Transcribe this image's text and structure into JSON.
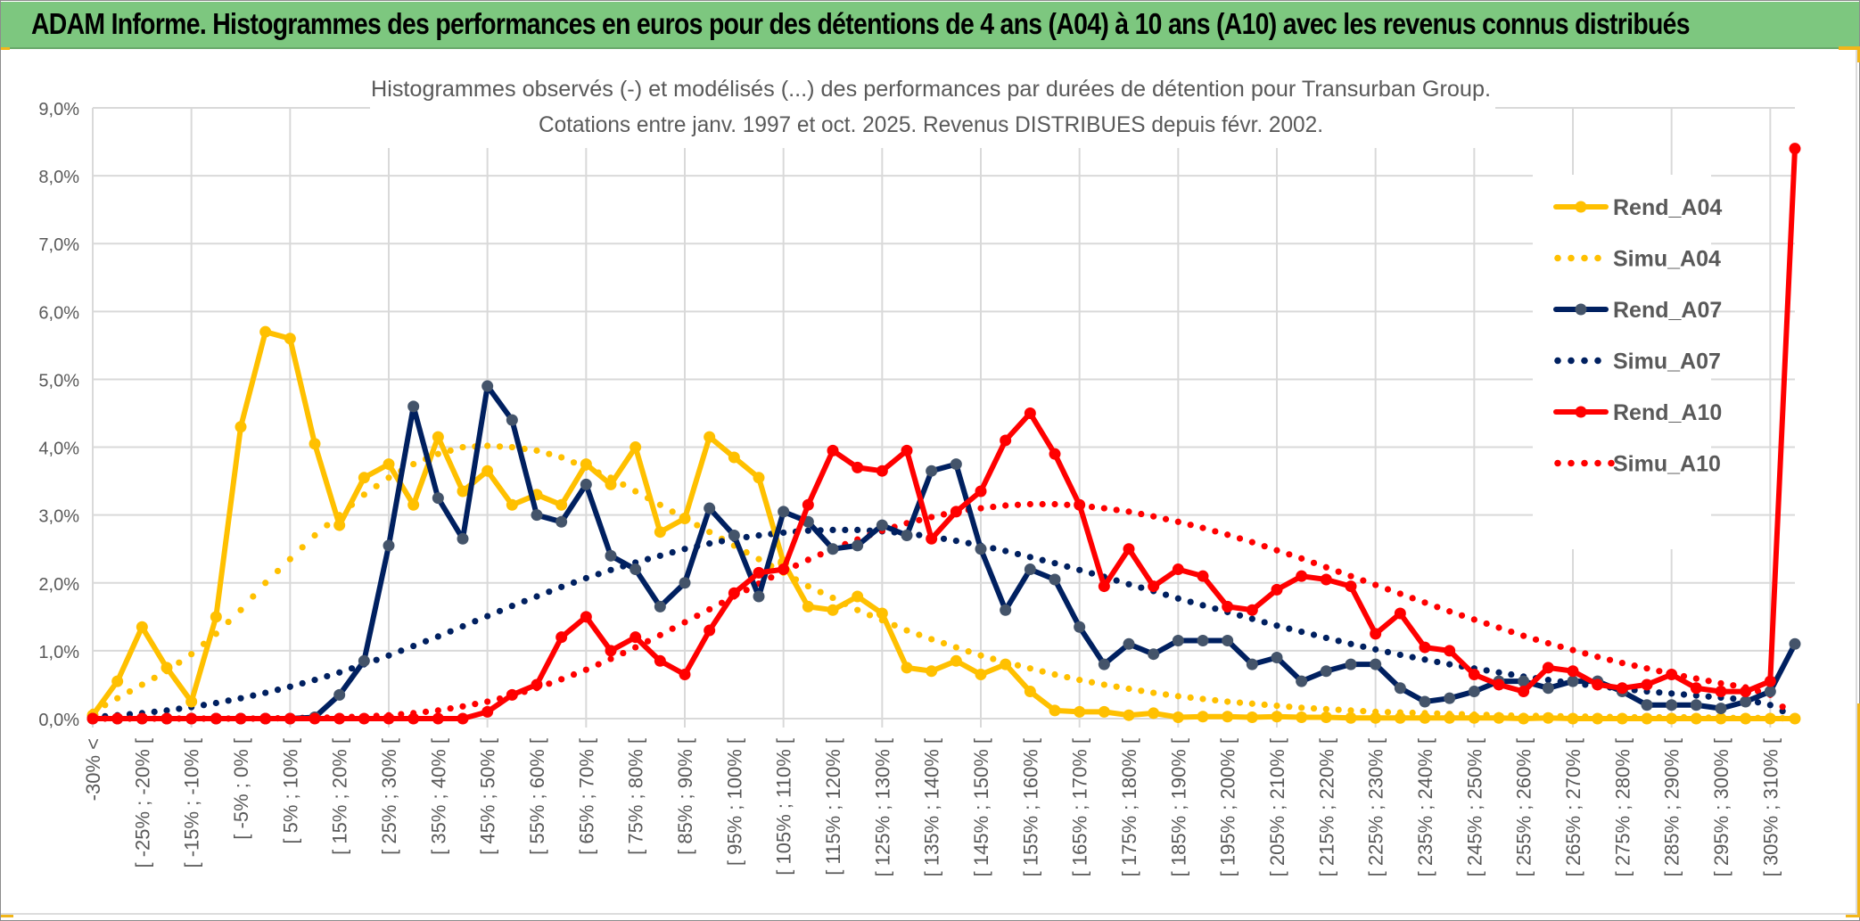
{
  "header": {
    "title": "ADAM Informe. Histogrammes des performances en euros pour des détentions de 4 ans (A04) à 10 ans (A10) avec les revenus connus distribués"
  },
  "chart_data": {
    "type": "line",
    "title": "Histogrammes observés (-) et modélisés (...) des performances par durées de détention pour Transurban Group.",
    "subtitle": "Cotations entre janv. 1997 et oct. 2025. Revenus DISTRIBUES depuis févr. 2002.",
    "xlabel": "",
    "ylabel": "",
    "ylim": [
      0,
      9
    ],
    "y_unit": "%",
    "y_ticks": [
      "0,0%",
      "1,0%",
      "2,0%",
      "3,0%",
      "4,0%",
      "5,0%",
      "6,0%",
      "7,0%",
      "8,0%",
      "9,0%"
    ],
    "grid": true,
    "legend_position": "right",
    "categories": [
      "-30% <",
      "[ -30% ; -25% [",
      "[ -25% ; -20% [",
      "[ -20% ; -15% [",
      "[ -15% ; -10% [",
      "[ -10% ; -5% [",
      "[ -5% ; 0% [",
      "[ 0% ; 5% [",
      "[ 5% ; 10% [",
      "[ 10% ; 15% [",
      "[ 15% ; 20% [",
      "[ 20% ; 25% [",
      "[ 25% ; 30% [",
      "[ 30% ; 35% [",
      "[ 35% ; 40% [",
      "[ 40% ; 45% [",
      "[ 45% ; 50% [",
      "[ 50% ; 55% [",
      "[ 55% ; 60% [",
      "[ 60% ; 65% [",
      "[ 65% ; 70% [",
      "[ 70% ; 75% [",
      "[ 75% ; 80% [",
      "[ 80% ; 85% [",
      "[ 85% ; 90% [",
      "[ 90% ; 95% [",
      "[ 95% ; 100% [",
      "[ 100% ; 105% [",
      "[ 105% ; 110% [",
      "[ 110% ; 115% [",
      "[ 115% ; 120% [",
      "[ 120% ; 125% [",
      "[ 125% ; 130% [",
      "[ 130% ; 135% [",
      "[ 135% ; 140% [",
      "[ 140% ; 145% [",
      "[ 145% ; 150% [",
      "[ 150% ; 155% [",
      "[ 155% ; 160% [",
      "[ 160% ; 165% [",
      "[ 165% ; 170% [",
      "[ 170% ; 175% [",
      "[ 175% ; 180% [",
      "[ 180% ; 185% [",
      "[ 185% ; 190% [",
      "[ 190% ; 195% [",
      "[ 195% ; 200% [",
      "[ 200% ; 205% [",
      "[ 205% ; 210% [",
      "[ 210% ; 215% [",
      "[ 215% ; 220% [",
      "[ 220% ; 225% [",
      "[ 225% ; 230% [",
      "[ 230% ; 235% [",
      "[ 235% ; 240% [",
      "[ 240% ; 245% [",
      "[ 245% ; 250% [",
      "[ 250% ; 255% [",
      "[ 255% ; 260% [",
      "[ 260% ; 265% [",
      "[ 265% ; 270% [",
      "[ 270% ; 275% [",
      "[ 275% ; 280% [",
      "[ 280% ; 285% [",
      "[ 285% ; 290% [",
      "[ 290% ; 295% [",
      "[ 295% ; 300% [",
      "[ 300% ; 305% [",
      "[ 305% ; 310% [",
      ""
    ],
    "visible_tick_labels": [
      "-30% <",
      "[ -25% ; -20% [",
      "[ -15% ; -10% [",
      "[ -5% ; 0% [",
      "[ 5% ; 10% [",
      "[ 15% ; 20% [",
      "[ 25% ; 30% [",
      "[ 35% ; 40% [",
      "[ 45% ; 50% [",
      "[ 55% ; 60% [",
      "[ 65% ; 70% [",
      "[ 75% ; 80% [",
      "[ 85% ; 90% [",
      "[ 95% ; 100% [",
      "[ 105% ; 110% [",
      "[ 115% ; 120% [",
      "[ 125% ; 130% [",
      "[ 135% ; 140% [",
      "[ 145% ; 150% [",
      "[ 155% ; 160% [",
      "[ 165% ; 170% [",
      "[ 175% ; 180% [",
      "[ 185% ; 190% [",
      "[ 195% ; 200% [",
      "[ 205% ; 210% [",
      "[ 215% ; 220% [",
      "[ 225% ; 230% [",
      "[ 235% ; 240% [",
      "[ 245% ; 250% [",
      "[ 255% ; 260% [",
      "[ 265% ; 270% [",
      "[ 275% ; 280% [",
      "[ 285% ; 290% [",
      "[ 295% ; 300% [",
      "[ 305% ; 310% ["
    ],
    "series": [
      {
        "name": "Rend_A04",
        "style": "solid",
        "color": "#ffc000",
        "marker_color": "#ffc000",
        "values": [
          0.05,
          0.55,
          1.35,
          0.75,
          0.25,
          1.5,
          4.3,
          5.7,
          5.6,
          4.05,
          2.85,
          3.55,
          3.75,
          3.15,
          4.15,
          3.35,
          3.65,
          3.15,
          3.3,
          3.15,
          3.75,
          3.45,
          4.0,
          2.75,
          2.95,
          4.15,
          3.85,
          3.55,
          2.3,
          1.65,
          1.6,
          1.8,
          1.55,
          0.75,
          0.7,
          0.85,
          0.65,
          0.8,
          0.4,
          0.12,
          0.1,
          0.1,
          0.05,
          0.08,
          0.02,
          0.03,
          0.03,
          0.02,
          0.03,
          0.02,
          0.02,
          0.01,
          0.01,
          0.01,
          0.01,
          0.01,
          0.01,
          0.01,
          0.0,
          0.01,
          0.0,
          0.0,
          0.0,
          0.0,
          0.0,
          0.0,
          0.0,
          0.0,
          0.0,
          0.0
        ]
      },
      {
        "name": "Simu_A04",
        "style": "dotted",
        "color": "#ffc000",
        "values": [
          0.1,
          0.3,
          0.5,
          0.7,
          0.95,
          1.25,
          1.6,
          2.0,
          2.35,
          2.7,
          3.0,
          3.3,
          3.55,
          3.75,
          3.9,
          4.0,
          4.02,
          4.0,
          3.95,
          3.85,
          3.7,
          3.55,
          3.35,
          3.15,
          2.95,
          2.75,
          2.55,
          2.35,
          2.15,
          1.95,
          1.78,
          1.6,
          1.45,
          1.3,
          1.17,
          1.05,
          0.93,
          0.83,
          0.74,
          0.65,
          0.57,
          0.5,
          0.44,
          0.38,
          0.33,
          0.29,
          0.25,
          0.22,
          0.19,
          0.16,
          0.14,
          0.12,
          0.1,
          0.09,
          0.08,
          0.07,
          0.06,
          0.05,
          0.04,
          0.04,
          0.03,
          0.03,
          0.02,
          0.02,
          0.02,
          0.02,
          0.01,
          0.01,
          0.01,
          0.0
        ]
      },
      {
        "name": "Rend_A07",
        "style": "solid",
        "color": "#002060",
        "marker_color": "#44546a",
        "values": [
          0.0,
          0.0,
          0.0,
          0.0,
          0.0,
          0.0,
          0.0,
          0.0,
          0.0,
          0.02,
          0.35,
          0.85,
          2.55,
          4.6,
          3.25,
          2.65,
          4.9,
          4.4,
          3.0,
          2.9,
          3.45,
          2.4,
          2.2,
          1.65,
          2.0,
          3.1,
          2.7,
          1.8,
          3.05,
          2.9,
          2.5,
          2.55,
          2.85,
          2.7,
          3.65,
          3.75,
          2.5,
          1.6,
          2.2,
          2.05,
          1.35,
          0.8,
          1.1,
          0.95,
          1.15,
          1.15,
          1.15,
          0.8,
          0.9,
          0.55,
          0.7,
          0.8,
          0.8,
          0.45,
          0.25,
          0.3,
          0.4,
          0.55,
          0.55,
          0.45,
          0.55,
          0.55,
          0.4,
          0.2,
          0.2,
          0.2,
          0.15,
          0.25,
          0.4,
          1.1
        ]
      },
      {
        "name": "Simu_A07",
        "style": "dotted",
        "color": "#002060",
        "values": [
          0.02,
          0.05,
          0.08,
          0.12,
          0.17,
          0.23,
          0.3,
          0.38,
          0.47,
          0.57,
          0.68,
          0.8,
          0.93,
          1.07,
          1.21,
          1.36,
          1.51,
          1.66,
          1.8,
          1.94,
          2.07,
          2.19,
          2.3,
          2.4,
          2.5,
          2.58,
          2.65,
          2.7,
          2.74,
          2.77,
          2.78,
          2.78,
          2.76,
          2.73,
          2.68,
          2.62,
          2.55,
          2.47,
          2.38,
          2.29,
          2.19,
          2.09,
          1.98,
          1.88,
          1.77,
          1.67,
          1.57,
          1.47,
          1.37,
          1.28,
          1.19,
          1.1,
          1.02,
          0.94,
          0.87,
          0.8,
          0.74,
          0.68,
          0.62,
          0.57,
          0.52,
          0.48,
          0.44,
          0.4,
          0.37,
          0.34,
          0.31,
          0.28,
          0.2,
          0.02
        ]
      },
      {
        "name": "Rend_A10",
        "style": "solid",
        "color": "#ff0000",
        "marker_color": "#ff0000",
        "values": [
          0.0,
          0.0,
          0.0,
          0.0,
          0.0,
          0.0,
          0.0,
          0.0,
          0.0,
          0.0,
          0.0,
          0.0,
          0.0,
          0.0,
          0.0,
          0.0,
          0.1,
          0.35,
          0.5,
          1.2,
          1.5,
          1.0,
          1.2,
          0.85,
          0.65,
          1.3,
          1.85,
          2.15,
          2.2,
          3.15,
          3.95,
          3.7,
          3.65,
          3.95,
          2.65,
          3.05,
          3.35,
          4.1,
          4.5,
          3.9,
          3.15,
          1.95,
          2.5,
          1.95,
          2.2,
          2.1,
          1.65,
          1.6,
          1.9,
          2.1,
          2.05,
          1.95,
          1.25,
          1.55,
          1.05,
          1.0,
          0.65,
          0.5,
          0.4,
          0.75,
          0.7,
          0.5,
          0.45,
          0.5,
          0.65,
          0.45,
          0.4,
          0.4,
          0.55,
          8.4
        ]
      },
      {
        "name": "Simu_A10",
        "style": "dotted",
        "color": "#ff0000",
        "values": [
          0.0,
          0.0,
          0.0,
          0.0,
          0.0,
          0.0,
          0.0,
          0.0,
          0.01,
          0.01,
          0.02,
          0.03,
          0.05,
          0.08,
          0.12,
          0.18,
          0.25,
          0.34,
          0.45,
          0.58,
          0.72,
          0.88,
          1.05,
          1.23,
          1.42,
          1.61,
          1.8,
          1.99,
          2.17,
          2.34,
          2.5,
          2.64,
          2.77,
          2.88,
          2.97,
          3.05,
          3.1,
          3.14,
          3.16,
          3.16,
          3.14,
          3.1,
          3.05,
          2.98,
          2.9,
          2.81,
          2.71,
          2.6,
          2.48,
          2.36,
          2.23,
          2.1,
          1.97,
          1.84,
          1.71,
          1.58,
          1.46,
          1.34,
          1.22,
          1.11,
          1.01,
          0.91,
          0.82,
          0.74,
          0.66,
          0.59,
          0.52,
          0.46,
          0.35,
          0.0
        ]
      }
    ]
  }
}
